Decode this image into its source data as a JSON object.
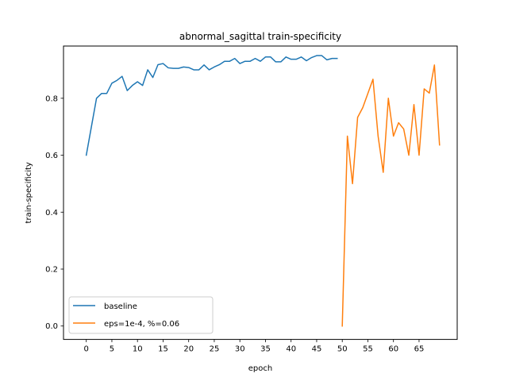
{
  "chart_data": {
    "type": "line",
    "title": "abnormal_sagittal train-specificity",
    "xlabel": "epoch",
    "ylabel": "train-specificity",
    "xlim": [
      -4.45,
      72.45
    ],
    "ylim": [
      -0.047,
      0.9835
    ],
    "x_ticks": [
      0,
      5,
      10,
      15,
      20,
      25,
      30,
      35,
      40,
      45,
      50,
      55,
      60,
      65
    ],
    "y_ticks": [
      0.0,
      0.2,
      0.4,
      0.6,
      0.8
    ],
    "y_tick_labels": [
      "0.0",
      "0.2",
      "0.4",
      "0.6",
      "0.8"
    ],
    "grid": false,
    "legend_position": "lower-left",
    "series": [
      {
        "name": "baseline",
        "color": "#1f77b4",
        "x": [
          0,
          1,
          2,
          3,
          4,
          5,
          6,
          7,
          8,
          9,
          10,
          11,
          12,
          13,
          14,
          15,
          16,
          17,
          18,
          19,
          20,
          21,
          22,
          23,
          24,
          25,
          26,
          27,
          28,
          29,
          30,
          31,
          32,
          33,
          34,
          35,
          36,
          37,
          38,
          39,
          40,
          41,
          42,
          43,
          44,
          45,
          46,
          47,
          48,
          49
        ],
        "values": [
          0.6,
          0.7,
          0.8,
          0.817,
          0.817,
          0.853,
          0.863,
          0.877,
          0.827,
          0.845,
          0.858,
          0.845,
          0.9,
          0.873,
          0.918,
          0.922,
          0.907,
          0.905,
          0.905,
          0.91,
          0.908,
          0.9,
          0.9,
          0.917,
          0.9,
          0.91,
          0.918,
          0.93,
          0.93,
          0.94,
          0.922,
          0.93,
          0.93,
          0.94,
          0.93,
          0.945,
          0.945,
          0.928,
          0.928,
          0.945,
          0.937,
          0.937,
          0.945,
          0.932,
          0.943,
          0.95,
          0.95,
          0.935,
          0.94,
          0.94
        ]
      },
      {
        "name": "eps=1e-4, %=0.06",
        "color": "#ff7f0e",
        "x": [
          50,
          51,
          52,
          53,
          54,
          55,
          56,
          57,
          58,
          59,
          60,
          61,
          62,
          63,
          64,
          65,
          66,
          67,
          68,
          69
        ],
        "values": [
          0.0,
          0.667,
          0.5,
          0.733,
          0.767,
          0.817,
          0.867,
          0.667,
          0.54,
          0.8,
          0.667,
          0.714,
          0.692,
          0.6,
          0.778,
          0.6,
          0.833,
          0.818,
          0.917,
          0.636
        ]
      }
    ]
  }
}
